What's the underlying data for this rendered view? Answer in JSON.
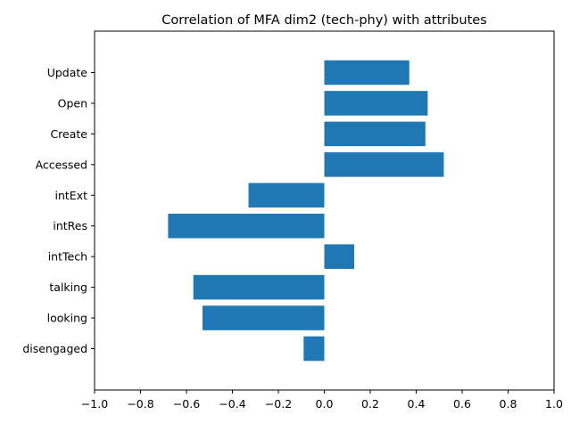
{
  "chart_data": {
    "type": "bar",
    "orientation": "horizontal",
    "title": "Correlation of MFA dim2 (tech-phy) with attributes",
    "xlabel": "",
    "ylabel": "",
    "xlim": [
      -1.0,
      1.0
    ],
    "xticks": [
      -1.0,
      -0.8,
      -0.6,
      -0.4,
      -0.2,
      0.0,
      0.2,
      0.4,
      0.6,
      0.8,
      1.0
    ],
    "xtick_labels": [
      "−1.0",
      "−0.8",
      "−0.6",
      "−0.4",
      "−0.2",
      "0.0",
      "0.2",
      "0.4",
      "0.6",
      "0.8",
      "1.0"
    ],
    "categories": [
      "disengaged",
      "looking",
      "talking",
      "intTech",
      "intRes",
      "intExt",
      "Accessed",
      "Create",
      "Open",
      "Update"
    ],
    "values": [
      -0.09,
      -0.53,
      -0.57,
      0.13,
      -0.68,
      -0.33,
      0.52,
      0.44,
      0.45,
      0.37
    ],
    "bar_color": "#1f77b4",
    "grid": false,
    "legend": "none"
  }
}
